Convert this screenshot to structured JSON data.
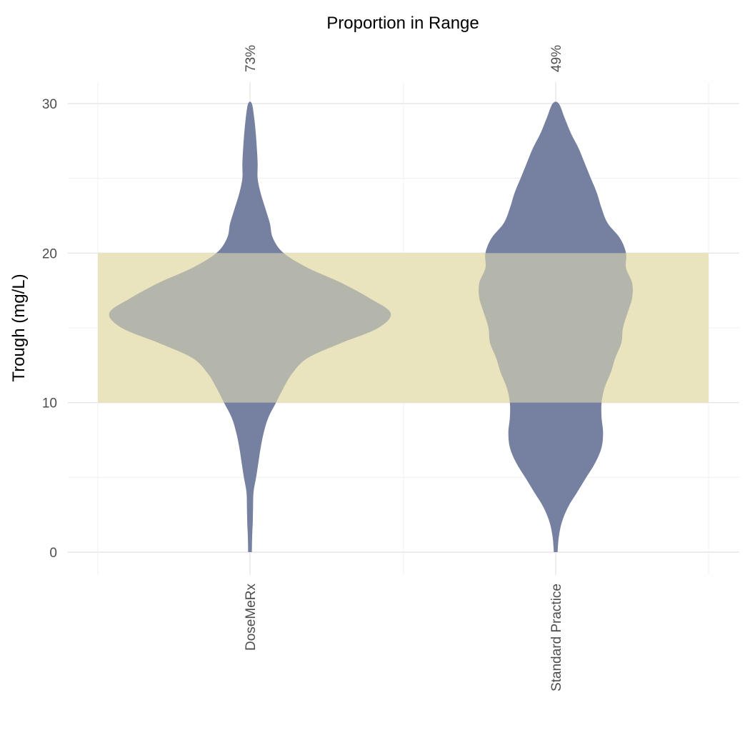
{
  "chart_data": {
    "type": "violin",
    "top_axis_title": "Proportion in Range",
    "ylabel": "Trough (mg/L)",
    "xlabel": "",
    "ylim": [
      0,
      30
    ],
    "y_ticks": [
      0,
      10,
      20,
      30
    ],
    "grid": true,
    "target_range": {
      "low": 10,
      "high": 20,
      "color": "#e8e2b8"
    },
    "violin_color": "#6f7a9c",
    "categories": [
      "DoseMeRx",
      "Standard Practice"
    ],
    "top_labels": [
      "73%",
      "49%"
    ],
    "series": [
      {
        "category": "DoseMeRx",
        "proportion_in_range": "73%",
        "density_profile": [
          {
            "y": 0,
            "half_width": 0.012
          },
          {
            "y": 1,
            "half_width": 0.014
          },
          {
            "y": 2,
            "half_width": 0.018
          },
          {
            "y": 3,
            "half_width": 0.02
          },
          {
            "y": 4,
            "half_width": 0.023
          },
          {
            "y": 5,
            "half_width": 0.04
          },
          {
            "y": 6,
            "half_width": 0.055
          },
          {
            "y": 7,
            "half_width": 0.07
          },
          {
            "y": 8,
            "half_width": 0.09
          },
          {
            "y": 9,
            "half_width": 0.12
          },
          {
            "y": 10,
            "half_width": 0.17
          },
          {
            "y": 11,
            "half_width": 0.22
          },
          {
            "y": 12,
            "half_width": 0.28
          },
          {
            "y": 13,
            "half_width": 0.38
          },
          {
            "y": 14,
            "half_width": 0.6
          },
          {
            "y": 15,
            "half_width": 0.84
          },
          {
            "y": 16,
            "half_width": 0.92
          },
          {
            "y": 17,
            "half_width": 0.78
          },
          {
            "y": 18,
            "half_width": 0.6
          },
          {
            "y": 19,
            "half_width": 0.38
          },
          {
            "y": 20,
            "half_width": 0.22
          },
          {
            "y": 21,
            "half_width": 0.15
          },
          {
            "y": 22,
            "half_width": 0.13
          },
          {
            "y": 23,
            "half_width": 0.1
          },
          {
            "y": 24,
            "half_width": 0.07
          },
          {
            "y": 25,
            "half_width": 0.05
          },
          {
            "y": 26,
            "half_width": 0.05
          },
          {
            "y": 27,
            "half_width": 0.045
          },
          {
            "y": 28,
            "half_width": 0.038
          },
          {
            "y": 29,
            "half_width": 0.028
          },
          {
            "y": 30,
            "half_width": 0.012
          }
        ]
      },
      {
        "category": "Standard Practice",
        "proportion_in_range": "49%",
        "density_profile": [
          {
            "y": 0,
            "half_width": 0.012
          },
          {
            "y": 1,
            "half_width": 0.02
          },
          {
            "y": 2,
            "half_width": 0.04
          },
          {
            "y": 3,
            "half_width": 0.08
          },
          {
            "y": 4,
            "half_width": 0.14
          },
          {
            "y": 5,
            "half_width": 0.2
          },
          {
            "y": 6,
            "half_width": 0.26
          },
          {
            "y": 7,
            "half_width": 0.3
          },
          {
            "y": 8,
            "half_width": 0.31
          },
          {
            "y": 9,
            "half_width": 0.3
          },
          {
            "y": 10,
            "half_width": 0.3
          },
          {
            "y": 11,
            "half_width": 0.32
          },
          {
            "y": 12,
            "half_width": 0.36
          },
          {
            "y": 13,
            "half_width": 0.39
          },
          {
            "y": 14,
            "half_width": 0.43
          },
          {
            "y": 15,
            "half_width": 0.44
          },
          {
            "y": 16,
            "half_width": 0.47
          },
          {
            "y": 17,
            "half_width": 0.5
          },
          {
            "y": 18,
            "half_width": 0.5
          },
          {
            "y": 19,
            "half_width": 0.46
          },
          {
            "y": 20,
            "half_width": 0.46
          },
          {
            "y": 21,
            "half_width": 0.42
          },
          {
            "y": 22,
            "half_width": 0.34
          },
          {
            "y": 23,
            "half_width": 0.3
          },
          {
            "y": 24,
            "half_width": 0.27
          },
          {
            "y": 25,
            "half_width": 0.23
          },
          {
            "y": 26,
            "half_width": 0.19
          },
          {
            "y": 27,
            "half_width": 0.15
          },
          {
            "y": 28,
            "half_width": 0.1
          },
          {
            "y": 29,
            "half_width": 0.06
          },
          {
            "y": 30,
            "half_width": 0.02
          }
        ]
      }
    ]
  }
}
